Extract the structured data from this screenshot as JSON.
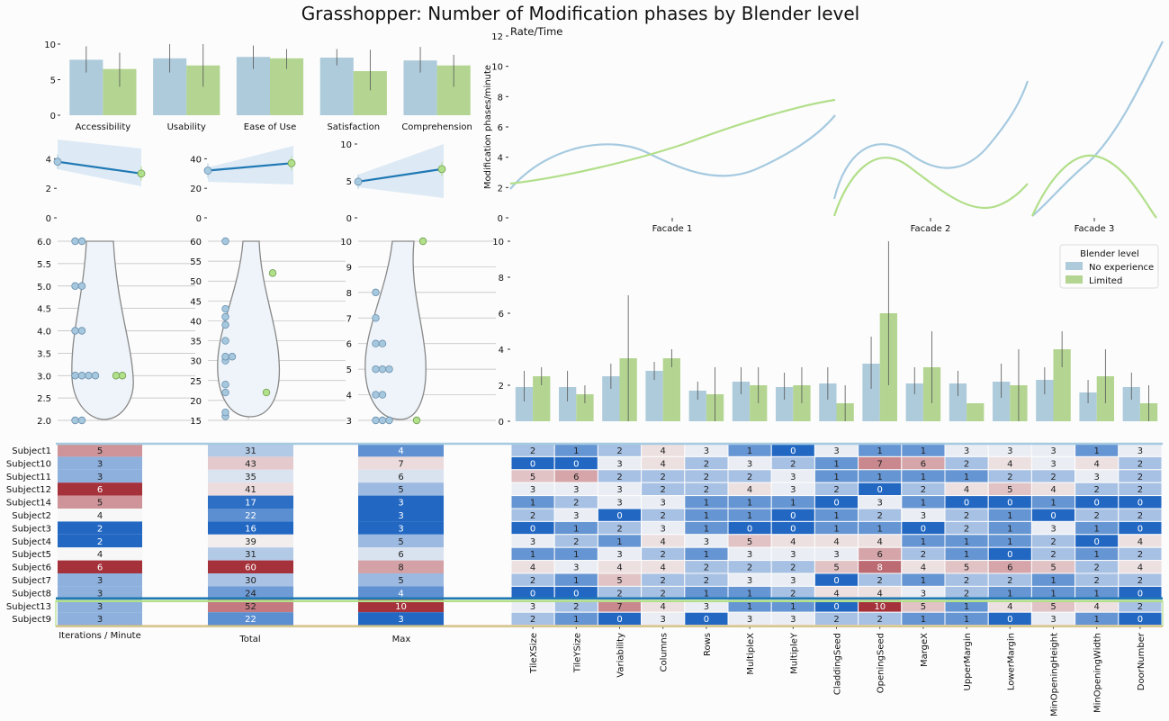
{
  "title": "Grasshopper: Number of Modification phases by Blender level",
  "colors": {
    "none": "#a6cae0",
    "limited": "#b2df8a",
    "line": "#1f78b4",
    "heat_low": "#2268c3",
    "heat_mid": "#f7f7f7",
    "heat_high": "#a5313b"
  },
  "legend": {
    "title": "Blender level",
    "items": [
      "No experience",
      "Limited"
    ]
  },
  "chart_data": [
    {
      "type": "bar",
      "panel": "survey",
      "categories": [
        "Accessibility",
        "Usability",
        "Ease of Use",
        "Satisfaction",
        "Comprehension"
      ],
      "series": [
        {
          "name": "No experience",
          "values": [
            7.8,
            8.0,
            8.2,
            8.1,
            7.7
          ],
          "err_low": [
            6.0,
            6.0,
            6.5,
            7.0,
            6.0
          ],
          "err_high": [
            9.7,
            10.0,
            9.8,
            9.3,
            9.6
          ]
        },
        {
          "name": "Limited",
          "values": [
            6.5,
            7.0,
            8.0,
            6.2,
            7.0
          ],
          "err_low": [
            4.0,
            4.0,
            6.5,
            3.5,
            4.0
          ],
          "err_high": [
            8.8,
            10.0,
            9.3,
            9.2,
            8.5
          ]
        }
      ],
      "yticks": [
        "0",
        "5",
        "10"
      ],
      "ylim": [
        0,
        10
      ]
    },
    {
      "type": "line",
      "panel": "rate_time",
      "title": "Rate/Time",
      "ylabel": "Modification phases/minute",
      "xlabels": [
        "Facade 1",
        "Facade 2",
        "Facade 3"
      ],
      "yticks": [
        "0",
        "2",
        "4",
        "6",
        "8",
        "10",
        "12"
      ],
      "ylim": [
        0,
        12
      ]
    },
    {
      "type": "line",
      "panel": "regressions",
      "plots": [
        {
          "points": [
            3.8,
            3.0
          ],
          "ylim": [
            0,
            5
          ],
          "yticks": [
            "0",
            "2",
            "4"
          ]
        },
        {
          "points": [
            32,
            37
          ],
          "ylim": [
            0,
            50
          ],
          "yticks": [
            "0",
            "20",
            "40"
          ]
        },
        {
          "points": [
            4.9,
            6.6
          ],
          "ylim": [
            0,
            10
          ],
          "yticks": [
            "0",
            "5",
            "10"
          ]
        }
      ]
    },
    {
      "type": "scatter",
      "panel": "violins",
      "plots": [
        {
          "ylim": [
            2,
            6
          ],
          "yticks": [
            "2.0",
            "2.5",
            "3.0",
            "3.5",
            "4.0",
            "4.5",
            "5.0",
            "5.5",
            "6.0"
          ],
          "none": [
            2,
            2,
            3,
            3,
            3,
            3,
            4,
            4,
            5,
            5,
            6,
            6
          ],
          "limited": [
            3,
            3
          ]
        },
        {
          "ylim": [
            15,
            60
          ],
          "yticks": [
            "15",
            "20",
            "25",
            "30",
            "35",
            "40",
            "45",
            "50",
            "55",
            "60"
          ],
          "none": [
            16,
            17,
            22,
            24,
            30,
            31,
            31,
            35,
            39,
            41,
            43,
            60
          ],
          "limited": [
            22,
            52
          ]
        },
        {
          "ylim": [
            3,
            10
          ],
          "yticks": [
            "3",
            "4",
            "5",
            "6",
            "7",
            "8",
            "9",
            "10"
          ],
          "none": [
            3,
            3,
            3,
            4,
            4,
            5,
            5,
            5,
            6,
            6,
            7,
            8
          ],
          "limited": [
            3,
            10
          ]
        }
      ]
    },
    {
      "type": "bar",
      "panel": "parameters",
      "categories": [
        "TileXSize",
        "TileYSize",
        "Variability",
        "Columns",
        "Rows",
        "MultipleX",
        "MultipleY",
        "CladdingSeed",
        "OpeningSeed",
        "MargeX",
        "UpperMargin",
        "LowerMargin",
        "MinOpeningHeight",
        "MinOpeningWidth",
        "DoorNumber"
      ],
      "series": [
        {
          "name": "No experience",
          "values": [
            1.9,
            1.9,
            2.5,
            2.8,
            1.7,
            2.2,
            1.9,
            2.1,
            3.2,
            2.1,
            2.1,
            2.2,
            2.3,
            1.6,
            1.9
          ],
          "err_low": [
            1.1,
            1.1,
            1.8,
            2.3,
            1.2,
            1.5,
            1.2,
            1.2,
            1.8,
            1.5,
            1.4,
            1.3,
            1.5,
            1.0,
            1.2
          ],
          "err_high": [
            2.8,
            2.8,
            3.2,
            3.3,
            2.2,
            3.0,
            2.7,
            3.0,
            4.7,
            3.0,
            2.8,
            3.2,
            3.0,
            2.3,
            2.7
          ]
        },
        {
          "name": "Limited",
          "values": [
            2.5,
            1.5,
            3.5,
            3.5,
            1.5,
            2.0,
            2.0,
            1.0,
            6.0,
            3.0,
            1.0,
            2.0,
            4.0,
            2.5,
            1.0
          ],
          "err_low": [
            2.0,
            1.0,
            0.0,
            3.0,
            0.0,
            1.0,
            1.0,
            0.0,
            2.0,
            1.0,
            1.0,
            0.0,
            3.0,
            1.0,
            0.0
          ],
          "err_high": [
            3.0,
            2.0,
            7.0,
            4.0,
            3.0,
            3.0,
            3.0,
            2.0,
            10.0,
            5.0,
            1.0,
            4.0,
            5.0,
            4.0,
            2.0
          ]
        }
      ],
      "yticks": [
        "0",
        "2",
        "4",
        "6",
        "8",
        "10"
      ],
      "ylim": [
        0,
        10
      ]
    },
    {
      "type": "heatmap",
      "panel": "subjects",
      "rows": [
        "Subject1",
        "Subject10",
        "Subject11",
        "Subject12",
        "Subject14",
        "Subject2",
        "Subject3",
        "Subject4",
        "Subject5",
        "Subject6",
        "Subject7",
        "Subject8",
        "Subject13",
        "Subject9"
      ],
      "left_columns": [
        "Iterations / Minute",
        "Total",
        "Max"
      ],
      "left_values": [
        [
          5,
          31,
          4
        ],
        [
          3,
          43,
          7
        ],
        [
          3,
          35,
          6
        ],
        [
          6,
          41,
          5
        ],
        [
          5,
          17,
          3
        ],
        [
          4,
          22,
          3
        ],
        [
          2,
          16,
          3
        ],
        [
          2,
          39,
          5
        ],
        [
          4,
          31,
          6
        ],
        [
          6,
          60,
          8
        ],
        [
          3,
          30,
          5
        ],
        [
          3,
          24,
          4
        ],
        [
          3,
          52,
          10
        ],
        [
          3,
          22,
          3
        ]
      ],
      "right_columns": [
        "TileXSize",
        "TileYSize",
        "Variability",
        "Columns",
        "Rows",
        "MultipleX",
        "MultipleY",
        "CladdingSeed",
        "OpeningSeed",
        "MargeX",
        "UpperMargin",
        "LowerMargin",
        "MinOpeningHeight",
        "MinOpeningWidth",
        "DoorNumber"
      ],
      "right_values": [
        [
          2,
          1,
          2,
          4,
          3,
          1,
          0,
          3,
          1,
          1,
          3,
          3,
          3,
          1,
          3
        ],
        [
          0,
          0,
          3,
          4,
          2,
          3,
          2,
          1,
          7,
          6,
          2,
          4,
          3,
          4,
          2
        ],
        [
          5,
          6,
          2,
          2,
          2,
          2,
          3,
          1,
          1,
          1,
          1,
          2,
          2,
          3,
          2
        ],
        [
          3,
          3,
          3,
          2,
          2,
          4,
          3,
          2,
          0,
          2,
          4,
          5,
          4,
          2,
          2
        ],
        [
          1,
          2,
          3,
          3,
          1,
          1,
          1,
          0,
          3,
          1,
          0,
          0,
          1,
          0,
          0
        ],
        [
          2,
          3,
          0,
          2,
          1,
          1,
          0,
          1,
          2,
          3,
          2,
          1,
          0,
          2,
          2
        ],
        [
          0,
          1,
          2,
          3,
          1,
          0,
          0,
          1,
          1,
          0,
          2,
          1,
          3,
          1,
          0
        ],
        [
          3,
          2,
          1,
          4,
          3,
          5,
          4,
          4,
          4,
          1,
          1,
          1,
          2,
          0,
          4
        ],
        [
          1,
          1,
          3,
          2,
          1,
          3,
          3,
          3,
          6,
          2,
          1,
          0,
          2,
          1,
          2
        ],
        [
          4,
          3,
          4,
          4,
          2,
          2,
          2,
          5,
          8,
          4,
          5,
          6,
          5,
          2,
          4
        ],
        [
          2,
          1,
          5,
          2,
          2,
          3,
          3,
          0,
          2,
          1,
          2,
          2,
          1,
          2,
          2
        ],
        [
          0,
          0,
          2,
          2,
          1,
          1,
          2,
          4,
          4,
          3,
          2,
          1,
          1,
          1,
          0
        ],
        [
          3,
          2,
          7,
          4,
          3,
          1,
          1,
          0,
          10,
          5,
          1,
          4,
          5,
          4,
          2
        ],
        [
          2,
          1,
          0,
          3,
          0,
          3,
          3,
          2,
          2,
          1,
          1,
          0,
          3,
          1,
          0
        ]
      ]
    }
  ]
}
